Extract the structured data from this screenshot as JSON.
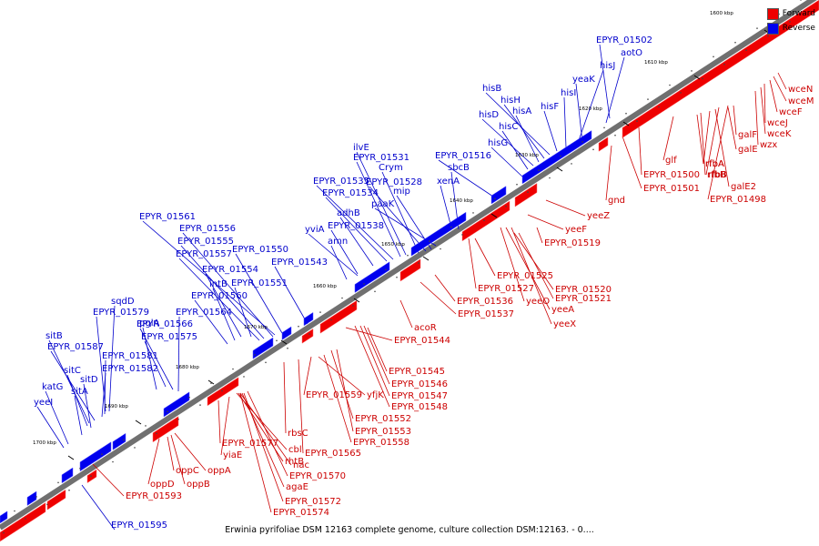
{
  "caption": "Erwinia pyrifoliae DSM 12163 complete genome, culture collection DSM:12163. - 0....",
  "legend": {
    "forward_label": "Forward",
    "forward_color": "#ee0000",
    "reverse_label": "Reverse",
    "reverse_color": "#0000ee"
  },
  "ticks": [
    "1600 kbp",
    "1610 kbp",
    "1620 kbp",
    "1630 kbp",
    "1640 kbp",
    "1650 kbp",
    "1660 kbp",
    "1670 kbp",
    "1680 kbp",
    "1690 kbp",
    "1700 kbp"
  ],
  "genes_reverse": [
    "EPYR_01595",
    "yeeI",
    "katG",
    "sitA",
    "sitD",
    "sitC",
    "sitB",
    "EPYR_01587",
    "EPYR_01582",
    "EPYR_01581",
    "EPYR_01579",
    "sqdD",
    "pglA",
    "EPYR_01575",
    "EPYR_01566",
    "EPYR_01564",
    "EPYR_01560",
    "intB",
    "EPYR_01554",
    "EPYR_01551",
    "EPYR_01557",
    "EPYR_01555",
    "EPYR_01556",
    "EPYR_01561",
    "EPYR_01550",
    "EPYR_01543",
    "amn",
    "yviA",
    "EPYR_01538",
    "adhB",
    "EPYR_01534",
    "EPYR_01535",
    "EPYR_01531",
    "ilvE",
    "Crym",
    "EPYR_01528",
    "mip",
    "paaK",
    "xenA",
    "sbcB",
    "EPYR_01516",
    "hisG",
    "hisC",
    "hisD",
    "hisA",
    "hisH",
    "hisB",
    "hisF",
    "hisI",
    "hisJ",
    "yeaK",
    "aotO",
    "EPYR_01502"
  ],
  "genes_forward": [
    "EPYR_01593",
    "oppD",
    "oppC",
    "oppB",
    "oppA",
    "EPYR_01577",
    "yiaE",
    "cbl",
    "rhtB",
    "nac",
    "agaE",
    "EPYR_01570",
    "EPYR_01572",
    "EPYR_01574",
    "rbsC",
    "EPYR_01565",
    "EPYR_01559",
    "yfjK",
    "EPYR_01558",
    "EPYR_01552",
    "EPYR_01553",
    "EPYR_01545",
    "EPYR_01546",
    "EPYR_01547",
    "EPYR_01548",
    "EPYR_01544",
    "acoR",
    "EPYR_01537",
    "EPYR_01536",
    "EPYR_01527",
    "EPYR_01525",
    "yeeO",
    "yeeA",
    "yeeX",
    "EPYR_01520",
    "EPYR_01521",
    "EPYR_01519",
    "yeeF",
    "yeeZ",
    "gnd",
    "EPYR_01501",
    "EPYR_01500",
    "glf",
    "rfbA",
    "rfbB",
    "rfbA",
    "galE2",
    "rfbB",
    "galE",
    "galF",
    "EPYR_01498",
    "wzx",
    "wceK",
    "wceJ",
    "wceF",
    "wceM",
    "wceN"
  ]
}
